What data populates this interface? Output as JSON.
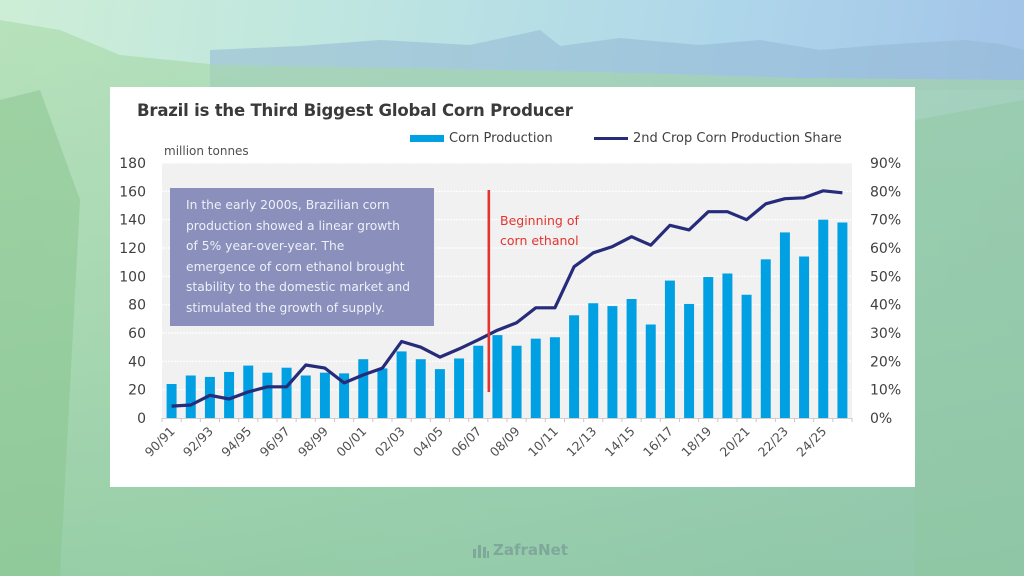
{
  "chart_data": {
    "type": "bar",
    "title": "Brazil is the Third Biggest Global Corn Producer",
    "ylabel": "million tonnes",
    "y2label": "",
    "xlabel": "",
    "ylim": [
      0,
      180
    ],
    "y2lim": [
      0,
      90
    ],
    "yticks": [
      "0",
      "20",
      "40",
      "60",
      "80",
      "100",
      "120",
      "140",
      "160",
      "180"
    ],
    "y2ticks": [
      "0%",
      "10%",
      "20%",
      "30%",
      "40%",
      "50%",
      "60%",
      "70%",
      "80%",
      "90%"
    ],
    "grid": true,
    "legend_position": "top-right",
    "categories": [
      "90/91",
      "91/92",
      "92/93",
      "93/94",
      "94/95",
      "95/96",
      "96/97",
      "97/98",
      "98/99",
      "99/00",
      "00/01",
      "01/02",
      "02/03",
      "03/04",
      "04/05",
      "05/06",
      "06/07",
      "07/08",
      "08/09",
      "09/10",
      "10/11",
      "11/12",
      "12/13",
      "13/14",
      "14/15",
      "15/16",
      "16/17",
      "17/18",
      "18/19",
      "19/20",
      "20/21",
      "21/22",
      "22/23",
      "23/24",
      "24/25",
      "25/26"
    ],
    "xtick_labels": [
      "90/91",
      "92/93",
      "94/95",
      "96/97",
      "98/99",
      "00/01",
      "02/03",
      "04/05",
      "06/07",
      "08/09",
      "10/11",
      "12/13",
      "14/15",
      "16/17",
      "18/19",
      "20/21",
      "22/23",
      "24/25"
    ],
    "series": [
      {
        "name": "Corn Production",
        "type": "bar",
        "axis": "left",
        "color": "#00a0e3",
        "values": [
          24,
          30,
          29,
          32.5,
          37,
          32,
          35.5,
          30,
          32,
          31.5,
          41.5,
          35,
          47,
          41.5,
          34.5,
          42,
          51,
          58.5,
          51,
          56,
          57,
          72.5,
          81,
          79,
          84,
          66,
          97,
          80.5,
          99.5,
          102,
          87,
          112,
          131,
          114,
          140,
          138
        ]
      },
      {
        "name": "2nd Crop Corn Production Share",
        "type": "line",
        "axis": "right",
        "unit": "%",
        "color": "#262b7a",
        "values": [
          4.2,
          4.6,
          8,
          6.7,
          9.2,
          11,
          11,
          18.7,
          17.6,
          12.4,
          15.2,
          17.6,
          27,
          25,
          21.5,
          24.4,
          27.6,
          31,
          33.6,
          38.9,
          38.9,
          53.4,
          58.3,
          60.5,
          64,
          61,
          68,
          66.4,
          72.8,
          72.8,
          70,
          75.6,
          77.4,
          77.7,
          80.2,
          79.5
        ]
      }
    ],
    "annotations": {
      "text_box": "In the early 2000s, Brazilian corn production showed a linear growth of 5% year-over-year. The emergence of corn ethanol brought stability to the domestic market and stimulated the growth of supply.",
      "text_box_lines": [
        "In the early 2000s, Brazilian corn",
        "production showed a linear growth",
        "of 5% year-over-year. The",
        "emergence of corn ethanol brought",
        "stability to the domestic market and",
        "stimulated the growth of supply."
      ],
      "marker_label_lines": [
        "Beginning of",
        "corn ethanol"
      ],
      "marker_at_category": "07/08",
      "marker_color": "#e3342f"
    }
  },
  "footer": {
    "logo_text": "ZafraNet"
  }
}
